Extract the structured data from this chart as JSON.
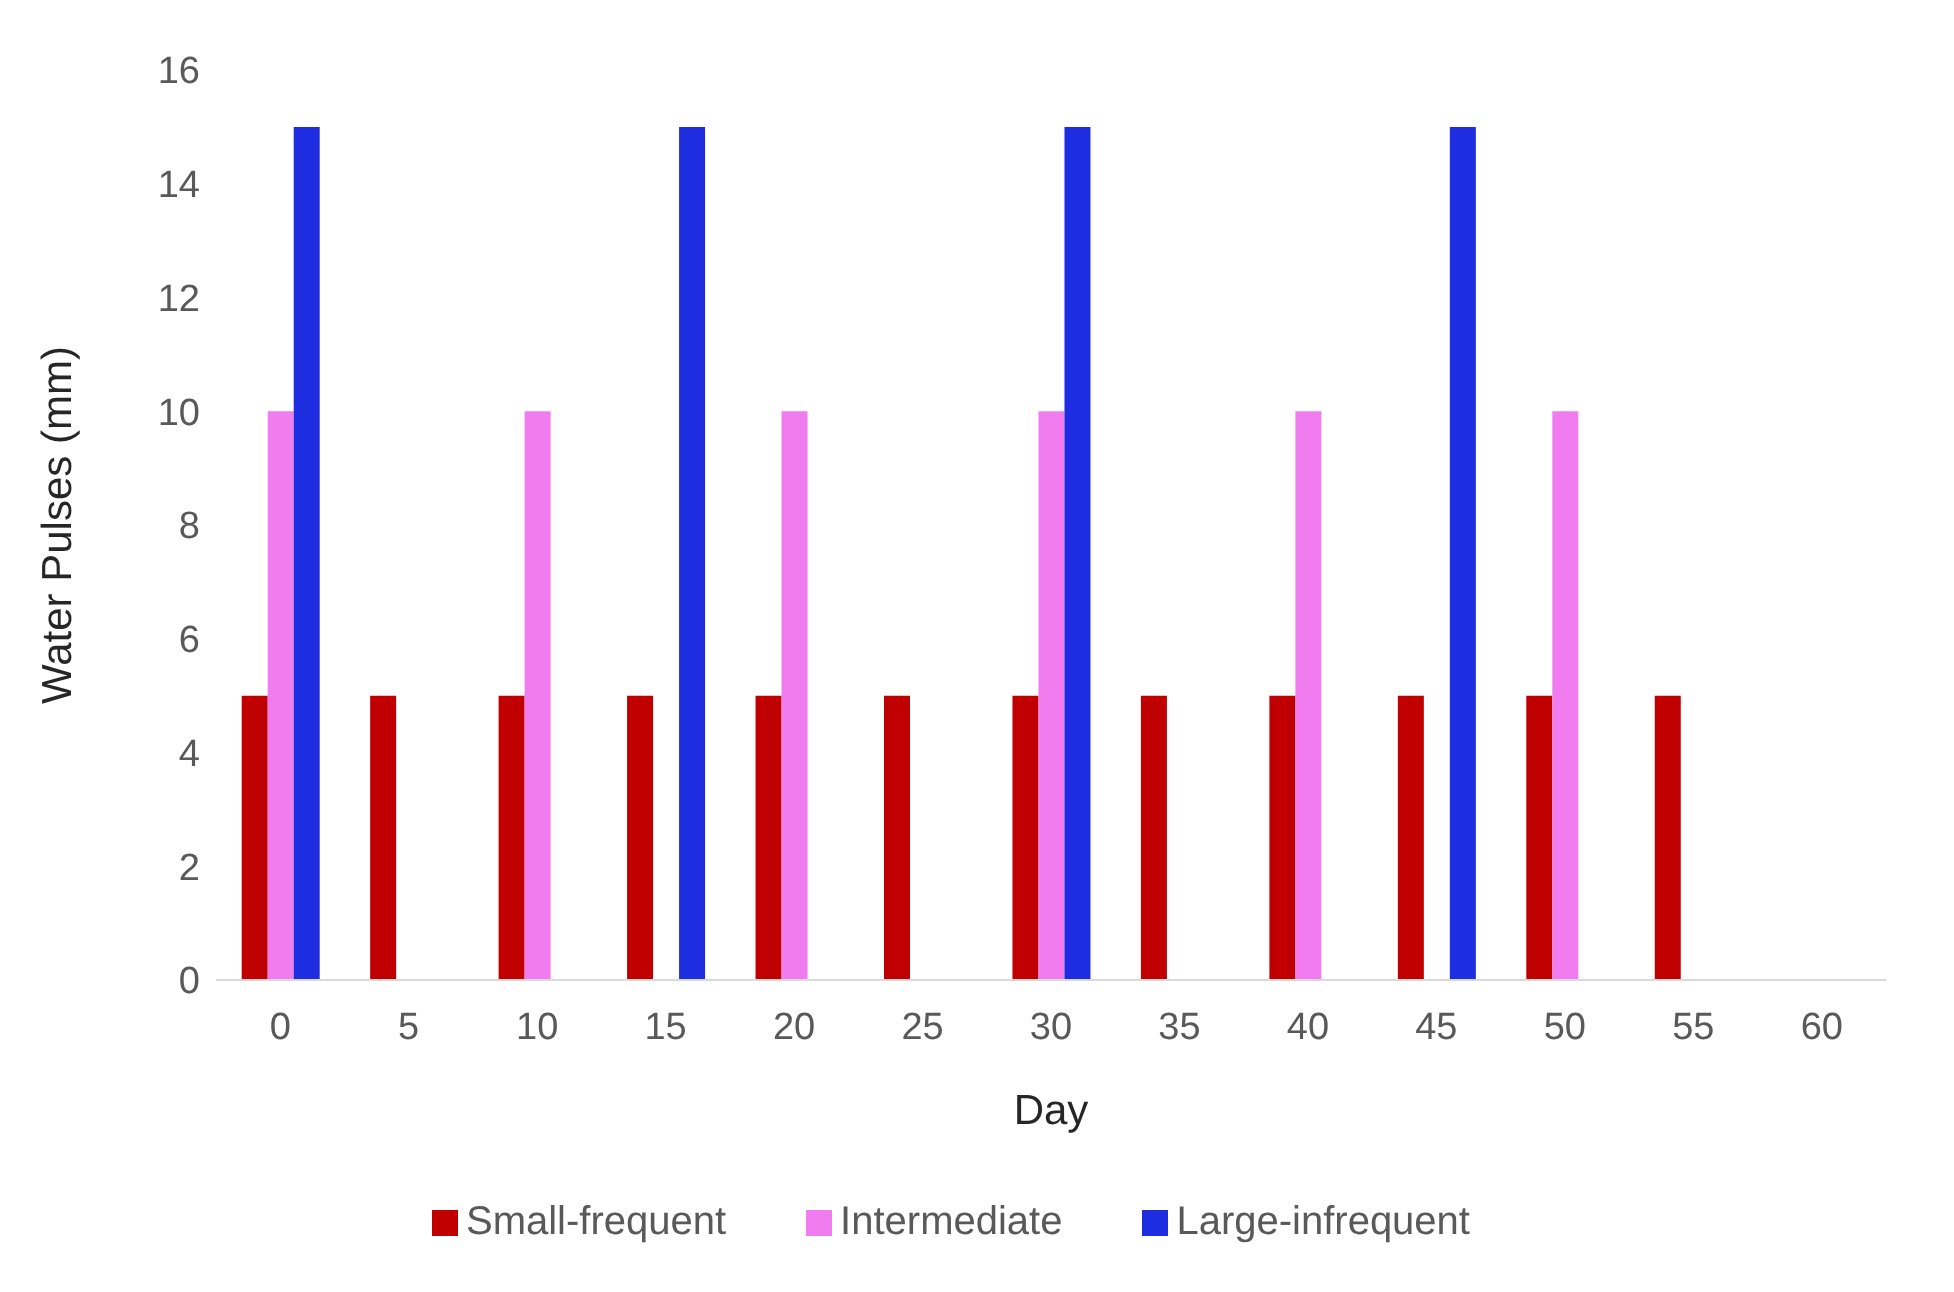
{
  "chart_data": {
    "type": "bar",
    "xlabel": "Day",
    "ylabel": "Water Pulses (mm)",
    "categories": [
      "0",
      "5",
      "10",
      "15",
      "20",
      "25",
      "30",
      "35",
      "40",
      "45",
      "50",
      "55",
      "60"
    ],
    "series": [
      {
        "name": "Small-frequent",
        "color": "#c00000",
        "values": [
          5,
          5,
          5,
          5,
          5,
          5,
          5,
          5,
          5,
          5,
          5,
          5,
          null
        ]
      },
      {
        "name": "Intermediate",
        "color": "#f07cf0",
        "values": [
          10,
          null,
          10,
          null,
          10,
          null,
          10,
          null,
          10,
          null,
          10,
          null,
          null
        ]
      },
      {
        "name": "Large-infrequent",
        "color": "#1f2de0",
        "values": [
          15,
          null,
          null,
          15,
          null,
          null,
          15,
          null,
          null,
          15,
          null,
          null,
          null
        ]
      }
    ],
    "ylim": [
      0,
      16
    ],
    "yticks": [
      0,
      2,
      4,
      6,
      8,
      10,
      12,
      14,
      16
    ],
    "grid": false,
    "legend": "bottom"
  }
}
